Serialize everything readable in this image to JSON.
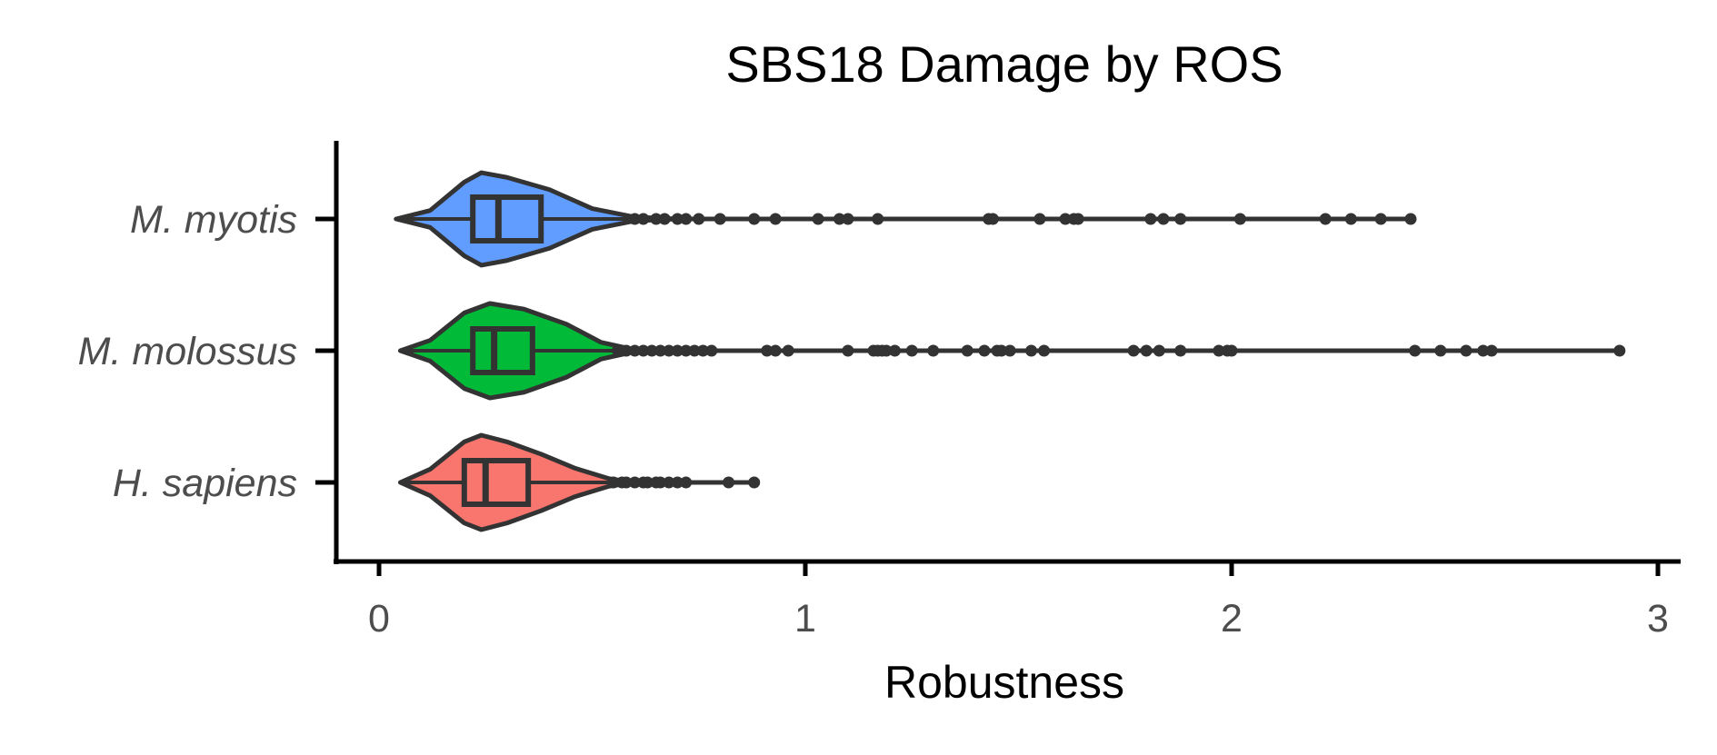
{
  "chart_data": {
    "type": "violin",
    "title": "SBS18 Damage by ROS",
    "xlabel": "Robustness",
    "ylabel": "",
    "xlim": [
      -0.1,
      3.05
    ],
    "xticks": [
      0,
      1,
      2,
      3
    ],
    "xtick_labels": [
      "0",
      "1",
      "2",
      "3"
    ],
    "orientation": "horizontal",
    "categories": [
      "M. myotis",
      "M. molossus",
      "H. sapiens"
    ],
    "grid": false,
    "legend": "none",
    "series": [
      {
        "name": "M. myotis",
        "color": "#619CFF",
        "min": 0.04,
        "q1": 0.22,
        "median": 0.28,
        "q3": 0.38,
        "max": 2.42,
        "whisker_high": 0.62,
        "density": [
          [
            0.04,
            0.0
          ],
          [
            0.12,
            0.18
          ],
          [
            0.2,
            0.78
          ],
          [
            0.24,
            0.98
          ],
          [
            0.3,
            0.88
          ],
          [
            0.4,
            0.62
          ],
          [
            0.5,
            0.22
          ],
          [
            0.6,
            0.04
          ],
          [
            0.7,
            0.0
          ]
        ],
        "outliers": [
          0.6,
          0.62,
          0.65,
          0.67,
          0.7,
          0.72,
          0.75,
          0.8,
          0.88,
          0.93,
          1.03,
          1.08,
          1.1,
          1.17,
          1.43,
          1.44,
          1.55,
          1.61,
          1.63,
          1.64,
          1.81,
          1.84,
          1.88,
          2.02,
          2.22,
          2.28,
          2.35,
          2.42
        ]
      },
      {
        "name": "M. molossus",
        "color": "#00BA38",
        "min": 0.05,
        "q1": 0.22,
        "median": 0.27,
        "q3": 0.36,
        "max": 2.91,
        "whisker_high": 0.55,
        "density": [
          [
            0.05,
            0.0
          ],
          [
            0.12,
            0.22
          ],
          [
            0.2,
            0.8
          ],
          [
            0.26,
            1.0
          ],
          [
            0.34,
            0.88
          ],
          [
            0.44,
            0.56
          ],
          [
            0.52,
            0.18
          ],
          [
            0.6,
            0.02
          ],
          [
            0.66,
            0.0
          ]
        ],
        "outliers": [
          0.56,
          0.58,
          0.6,
          0.62,
          0.64,
          0.66,
          0.68,
          0.7,
          0.72,
          0.74,
          0.76,
          0.78,
          0.91,
          0.93,
          0.96,
          1.1,
          1.16,
          1.17,
          1.18,
          1.19,
          1.21,
          1.25,
          1.3,
          1.38,
          1.42,
          1.45,
          1.46,
          1.48,
          1.53,
          1.56,
          1.77,
          1.8,
          1.83,
          1.88,
          1.97,
          1.99,
          2.0,
          2.43,
          2.49,
          2.55,
          2.59,
          2.61,
          2.91
        ]
      },
      {
        "name": "H. sapiens",
        "color": "#F8766D",
        "min": 0.05,
        "q1": 0.2,
        "median": 0.25,
        "q3": 0.35,
        "max": 0.88,
        "whisker_high": 0.55,
        "density": [
          [
            0.05,
            0.0
          ],
          [
            0.12,
            0.28
          ],
          [
            0.2,
            0.86
          ],
          [
            0.24,
            1.0
          ],
          [
            0.3,
            0.86
          ],
          [
            0.38,
            0.6
          ],
          [
            0.46,
            0.3
          ],
          [
            0.54,
            0.08
          ],
          [
            0.6,
            0.0
          ]
        ],
        "outliers": [
          0.55,
          0.57,
          0.58,
          0.6,
          0.62,
          0.63,
          0.65,
          0.66,
          0.68,
          0.7,
          0.72,
          0.82,
          0.88
        ]
      }
    ]
  }
}
